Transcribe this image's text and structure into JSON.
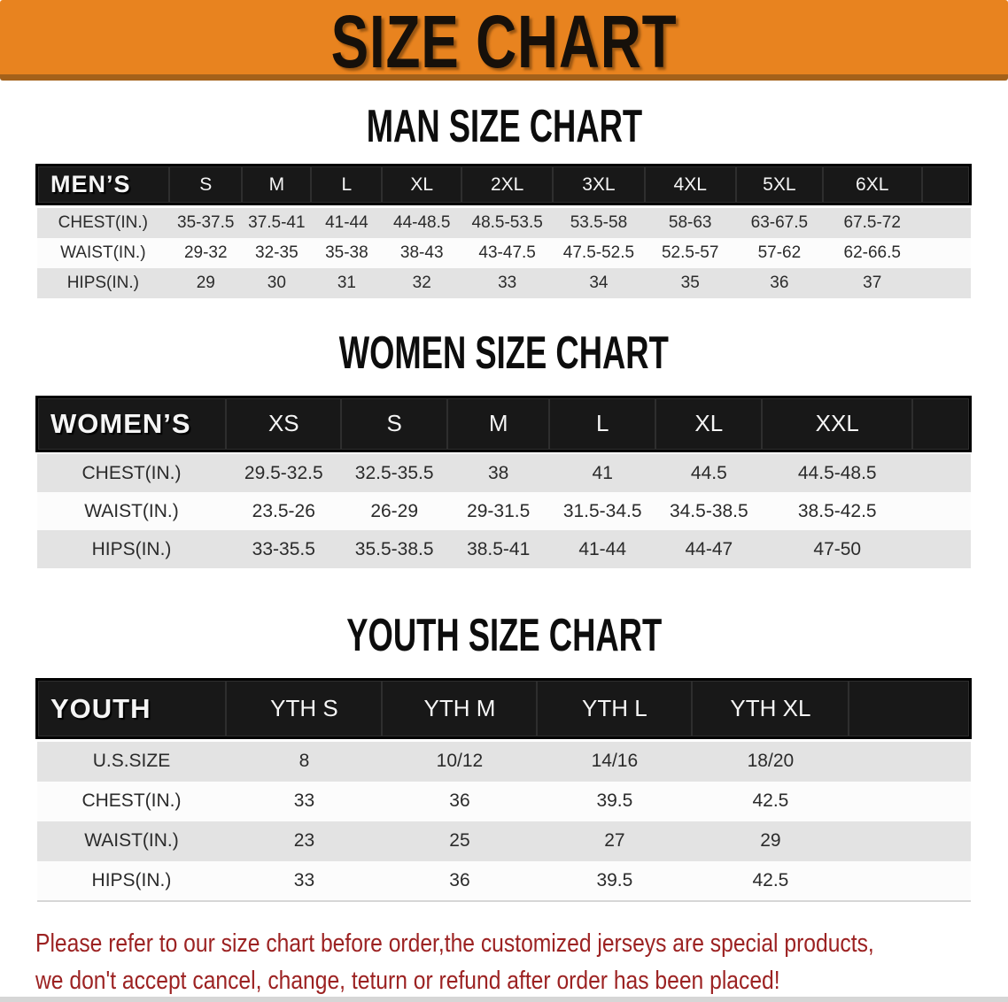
{
  "banner": {
    "title": "SIZE CHART"
  },
  "colors": {
    "banner_orange": "#E8831F",
    "banner_bottom_edge": "#A4611A",
    "header_bar_black": "#181818",
    "row_gray": "#E3E3E3",
    "row_white": "#FCFCFC",
    "disclaimer_red": "#9C2222",
    "body_text": "#2B2B2B"
  },
  "sections": [
    {
      "id": "men",
      "heading": "MAN SIZE CHART",
      "table": {
        "label": "MEN’S",
        "columns": [
          "S",
          "M",
          "L",
          "XL",
          "2XL",
          "3XL",
          "4XL",
          "5XL",
          "6XL"
        ],
        "rows": [
          {
            "label": "CHEST(IN.)",
            "values": [
              "35-37.5",
              "37.5-41",
              "41-44",
              "44-48.5",
              "48.5-53.5",
              "53.5-58",
              "58-63",
              "63-67.5",
              "67.5-72"
            ]
          },
          {
            "label": "WAIST(IN.)",
            "values": [
              "29-32",
              "32-35",
              "35-38",
              "38-43",
              "43-47.5",
              "47.5-52.5",
              "52.5-57",
              "57-62",
              "62-66.5"
            ]
          },
          {
            "label": "HIPS(IN.)",
            "values": [
              "29",
              "30",
              "31",
              "32",
              "33",
              "34",
              "35",
              "36",
              "37"
            ]
          }
        ]
      }
    },
    {
      "id": "women",
      "heading": "WOMEN SIZE CHART",
      "table": {
        "label": "WOMEN’S",
        "columns": [
          "XS",
          "S",
          "M",
          "L",
          "XL",
          "XXL"
        ],
        "rows": [
          {
            "label": "CHEST(IN.)",
            "values": [
              "29.5-32.5",
              "32.5-35.5",
              "38",
              "41",
              "44.5",
              "44.5-48.5"
            ]
          },
          {
            "label": "WAIST(IN.)",
            "values": [
              "23.5-26",
              "26-29",
              "29-31.5",
              "31.5-34.5",
              "34.5-38.5",
              "38.5-42.5"
            ]
          },
          {
            "label": "HIPS(IN.)",
            "values": [
              "33-35.5",
              "35.5-38.5",
              "38.5-41",
              "41-44",
              "44-47",
              "47-50"
            ]
          }
        ]
      }
    },
    {
      "id": "youth",
      "heading": "YOUTH SIZE CHART",
      "table": {
        "label": "YOUTH",
        "columns": [
          "YTH S",
          "YTH M",
          "YTH L",
          "YTH XL"
        ],
        "rows": [
          {
            "label": "U.S.SIZE",
            "values": [
              "8",
              "10/12",
              "14/16",
              "18/20"
            ]
          },
          {
            "label": "CHEST(IN.)",
            "values": [
              "33",
              "36",
              "39.5",
              "42.5"
            ]
          },
          {
            "label": "WAIST(IN.)",
            "values": [
              "23",
              "25",
              "27",
              "29"
            ]
          },
          {
            "label": "HIPS(IN.)",
            "values": [
              "33",
              "36",
              "39.5",
              "42.5"
            ]
          }
        ]
      }
    }
  ],
  "disclaimer": {
    "line1": "Please refer to our size chart before order,the customized jerseys are special products,",
    "line2": "we don't accept cancel, change, teturn or refund after order has been placed!"
  }
}
